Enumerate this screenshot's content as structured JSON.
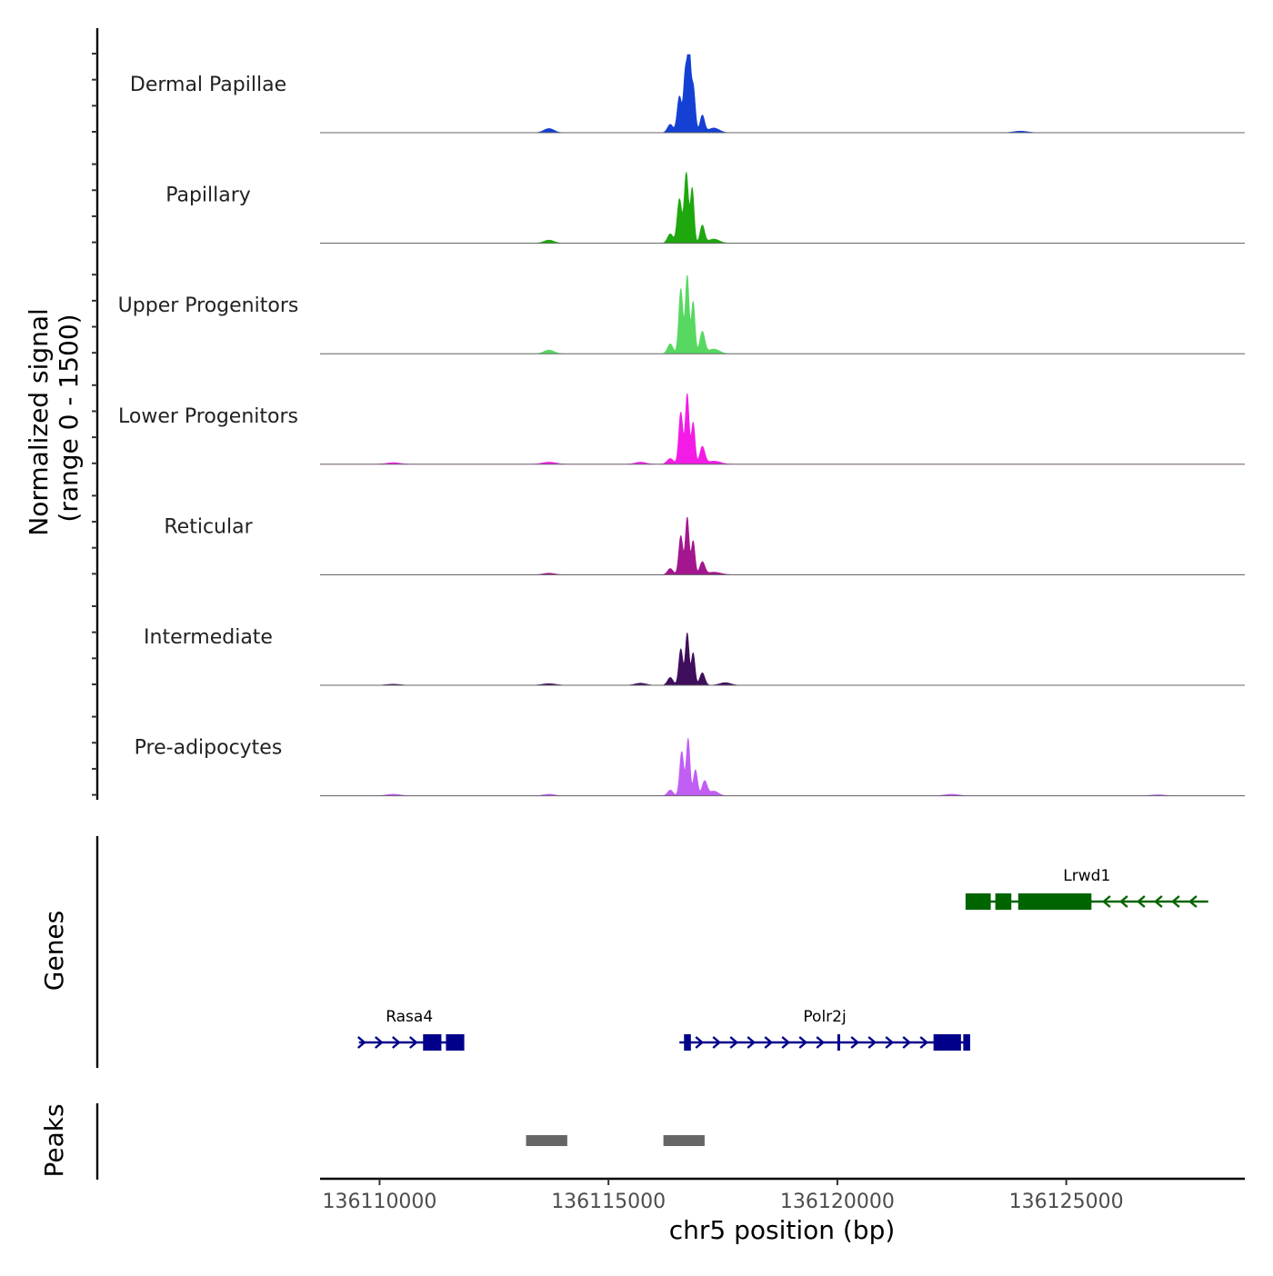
{
  "chart_data": {
    "type": "area",
    "title": "",
    "region": {
      "chrom": "chr5",
      "start": 136108700,
      "end": 136128900
    },
    "xlabel": "chr5 position (bp)",
    "ylabel_line1": "Normalized signal",
    "ylabel_line2": "(range 0 - 1500)",
    "ylim": [
      0,
      1500
    ],
    "x_ticks": [
      {
        "value": 136110000,
        "label": "136110000"
      },
      {
        "value": 136115000,
        "label": "136115000"
      },
      {
        "value": 136120000,
        "label": "136120000"
      },
      {
        "value": 136125000,
        "label": "136125000"
      }
    ],
    "tracks": [
      {
        "name": "Dermal Papillae",
        "color": "#1440d4",
        "peaks": [
          {
            "pos": 136113700,
            "height": 80,
            "width": 110
          },
          {
            "pos": 136116350,
            "height": 160,
            "width": 60
          },
          {
            "pos": 136116550,
            "height": 700,
            "width": 50
          },
          {
            "pos": 136116680,
            "height": 1150,
            "width": 40
          },
          {
            "pos": 136116760,
            "height": 1500,
            "width": 35
          },
          {
            "pos": 136116850,
            "height": 900,
            "width": 45
          },
          {
            "pos": 136117050,
            "height": 330,
            "width": 50
          },
          {
            "pos": 136117300,
            "height": 90,
            "width": 120
          },
          {
            "pos": 136124000,
            "height": 30,
            "width": 150
          }
        ]
      },
      {
        "name": "Papillary",
        "color": "#1ea80e",
        "peaks": [
          {
            "pos": 136113700,
            "height": 60,
            "width": 110
          },
          {
            "pos": 136116350,
            "height": 180,
            "width": 60
          },
          {
            "pos": 136116550,
            "height": 850,
            "width": 50
          },
          {
            "pos": 136116700,
            "height": 1350,
            "width": 45
          },
          {
            "pos": 136116830,
            "height": 1050,
            "width": 40
          },
          {
            "pos": 136117050,
            "height": 340,
            "width": 50
          },
          {
            "pos": 136117300,
            "height": 80,
            "width": 120
          }
        ]
      },
      {
        "name": "Upper Progenitors",
        "color": "#57d961",
        "peaks": [
          {
            "pos": 136113700,
            "height": 70,
            "width": 110
          },
          {
            "pos": 136116350,
            "height": 190,
            "width": 60
          },
          {
            "pos": 136116580,
            "height": 1250,
            "width": 45
          },
          {
            "pos": 136116720,
            "height": 1500,
            "width": 40
          },
          {
            "pos": 136116850,
            "height": 1000,
            "width": 40
          },
          {
            "pos": 136117050,
            "height": 420,
            "width": 55
          },
          {
            "pos": 136117300,
            "height": 90,
            "width": 120
          }
        ]
      },
      {
        "name": "Lower Progenitors",
        "color": "#f41be6",
        "peaks": [
          {
            "pos": 136110300,
            "height": 30,
            "width": 150
          },
          {
            "pos": 136113700,
            "height": 40,
            "width": 150
          },
          {
            "pos": 136115700,
            "height": 40,
            "width": 120
          },
          {
            "pos": 136116350,
            "height": 110,
            "width": 70
          },
          {
            "pos": 136116580,
            "height": 1000,
            "width": 45
          },
          {
            "pos": 136116720,
            "height": 1350,
            "width": 40
          },
          {
            "pos": 136116850,
            "height": 800,
            "width": 40
          },
          {
            "pos": 136117050,
            "height": 330,
            "width": 55
          },
          {
            "pos": 136117300,
            "height": 60,
            "width": 150
          }
        ]
      },
      {
        "name": "Reticular",
        "color": "#a3168f",
        "peaks": [
          {
            "pos": 136113700,
            "height": 30,
            "width": 120
          },
          {
            "pos": 136116350,
            "height": 120,
            "width": 60
          },
          {
            "pos": 136116580,
            "height": 750,
            "width": 45
          },
          {
            "pos": 136116720,
            "height": 1100,
            "width": 40
          },
          {
            "pos": 136116850,
            "height": 650,
            "width": 40
          },
          {
            "pos": 136117050,
            "height": 240,
            "width": 55
          },
          {
            "pos": 136117300,
            "height": 50,
            "width": 150
          }
        ]
      },
      {
        "name": "Intermediate",
        "color": "#3f0e5c",
        "peaks": [
          {
            "pos": 136110300,
            "height": 20,
            "width": 150
          },
          {
            "pos": 136113700,
            "height": 30,
            "width": 150
          },
          {
            "pos": 136115700,
            "height": 40,
            "width": 120
          },
          {
            "pos": 136116350,
            "height": 150,
            "width": 60
          },
          {
            "pos": 136116580,
            "height": 700,
            "width": 45
          },
          {
            "pos": 136116720,
            "height": 1000,
            "width": 40
          },
          {
            "pos": 136116850,
            "height": 620,
            "width": 40
          },
          {
            "pos": 136117050,
            "height": 240,
            "width": 55
          },
          {
            "pos": 136117550,
            "height": 50,
            "width": 120
          }
        ]
      },
      {
        "name": "Pre-adipocytes",
        "color": "#c15ef3",
        "peaks": [
          {
            "pos": 136110300,
            "height": 30,
            "width": 150
          },
          {
            "pos": 136113700,
            "height": 30,
            "width": 120
          },
          {
            "pos": 136116350,
            "height": 110,
            "width": 60
          },
          {
            "pos": 136116600,
            "height": 850,
            "width": 45
          },
          {
            "pos": 136116740,
            "height": 1100,
            "width": 40
          },
          {
            "pos": 136116900,
            "height": 500,
            "width": 45
          },
          {
            "pos": 136117100,
            "height": 280,
            "width": 55
          },
          {
            "pos": 136117300,
            "height": 90,
            "width": 100
          },
          {
            "pos": 136122500,
            "height": 30,
            "width": 150
          },
          {
            "pos": 136127000,
            "height": 20,
            "width": 150
          }
        ]
      }
    ],
    "genes_label": "Genes",
    "genes": [
      {
        "name": "Lrwd1",
        "strand": "-",
        "color": "#006400",
        "row": 0,
        "start": 136122800,
        "end": 136128100,
        "exons": [
          [
            136122800,
            136123350
          ],
          [
            136123450,
            136123800
          ],
          [
            136123950,
            136125550
          ]
        ]
      },
      {
        "name": "Rasa4",
        "strand": "+",
        "color": "#00008b",
        "row": 1,
        "start": 136109550,
        "end": 136111750,
        "exons": [
          [
            136110950,
            136111350
          ],
          [
            136111450,
            136111850
          ]
        ]
      },
      {
        "name": "Polr2j",
        "strand": "+",
        "color": "#00008b",
        "row": 1,
        "start": 136116550,
        "end": 136122900,
        "exons": [
          [
            136116650,
            136116800
          ],
          [
            136120000,
            136120050
          ],
          [
            136122100,
            136122700
          ],
          [
            136122750,
            136122900
          ]
        ]
      }
    ],
    "peaks_label": "Peaks",
    "peak_regions": [
      {
        "start": 136113200,
        "end": 136114100
      },
      {
        "start": 136116200,
        "end": 136117100
      }
    ]
  }
}
